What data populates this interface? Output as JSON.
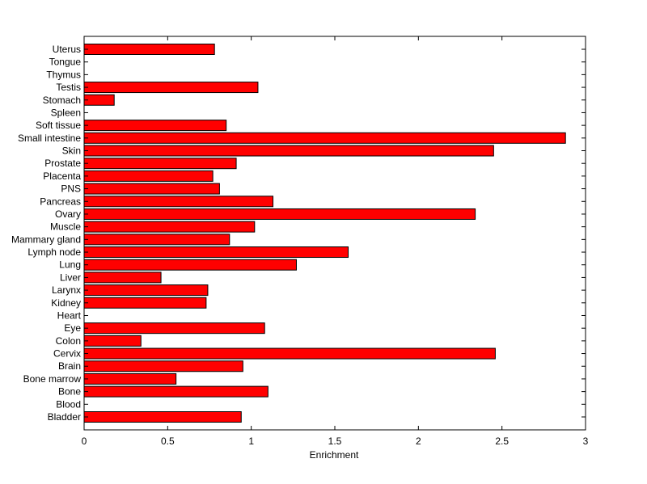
{
  "chart_data": {
    "type": "bar",
    "orientation": "horizontal",
    "categories": [
      "Uterus",
      "Tongue",
      "Thymus",
      "Testis",
      "Stomach",
      "Spleen",
      "Soft tissue",
      "Small intestine",
      "Skin",
      "Prostate",
      "Placenta",
      "PNS",
      "Pancreas",
      "Ovary",
      "Muscle",
      "Mammary gland",
      "Lymph node",
      "Lung",
      "Liver",
      "Larynx",
      "Kidney",
      "Heart",
      "Eye",
      "Colon",
      "Cervix",
      "Brain",
      "Bone marrow",
      "Bone",
      "Blood",
      "Bladder"
    ],
    "values": [
      0.78,
      0,
      0,
      1.04,
      0.18,
      0,
      0.85,
      2.88,
      2.45,
      0.91,
      0.77,
      0.81,
      1.13,
      2.34,
      1.02,
      0.87,
      1.58,
      1.27,
      0.46,
      0.74,
      0.73,
      0,
      1.08,
      0.34,
      2.46,
      0.95,
      0.55,
      1.1,
      0,
      0.94
    ],
    "xlabel": "Enrichment",
    "ylabel": "",
    "title": "",
    "xlim": [
      0,
      3
    ],
    "xticks": [
      "0",
      "0.5",
      "1",
      "1.5",
      "2",
      "2.5",
      "3"
    ],
    "bar_color": "#ff0000",
    "grid": false
  }
}
